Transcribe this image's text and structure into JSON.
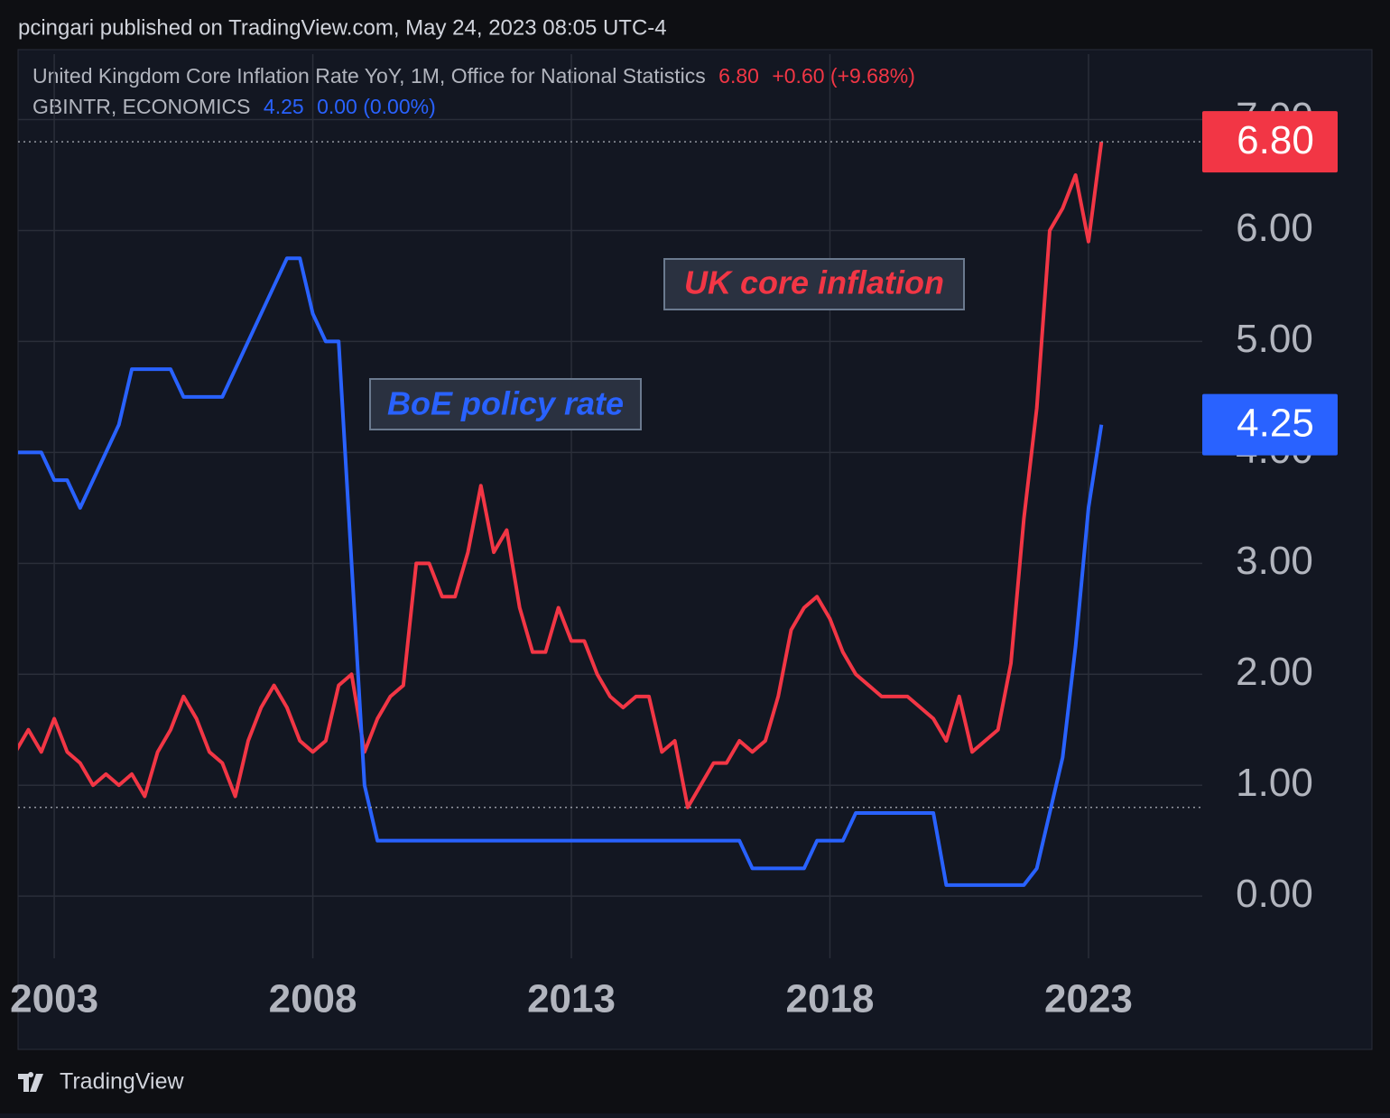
{
  "header": "pcingari published on TradingView.com, May 24, 2023 08:05 UTC-4",
  "footer": "TradingView",
  "chart_data": {
    "type": "line",
    "annotations": [
      "UK core inflation",
      "BoE policy rate"
    ],
    "x": [
      2002.25,
      2002.5,
      2002.75,
      2003,
      2003.25,
      2003.5,
      2003.75,
      2004,
      2004.25,
      2004.5,
      2004.75,
      2005,
      2005.25,
      2005.5,
      2005.75,
      2006,
      2006.25,
      2006.5,
      2006.75,
      2007,
      2007.25,
      2007.5,
      2007.75,
      2008,
      2008.25,
      2008.5,
      2008.75,
      2009,
      2009.25,
      2009.5,
      2009.75,
      2010,
      2010.25,
      2010.5,
      2010.75,
      2011,
      2011.25,
      2011.5,
      2011.75,
      2012,
      2012.25,
      2012.5,
      2012.75,
      2013,
      2013.25,
      2013.5,
      2013.75,
      2014,
      2014.25,
      2014.5,
      2014.75,
      2015,
      2015.25,
      2015.5,
      2015.75,
      2016,
      2016.25,
      2016.5,
      2016.75,
      2017,
      2017.25,
      2017.5,
      2017.75,
      2018,
      2018.25,
      2018.5,
      2018.75,
      2019,
      2019.25,
      2019.5,
      2019.75,
      2020,
      2020.25,
      2020.5,
      2020.75,
      2021,
      2021.25,
      2021.5,
      2021.75,
      2022,
      2022.25,
      2022.5,
      2022.75,
      2023,
      2023.25
    ],
    "series": [
      {
        "name": "United Kingdom Core Inflation Rate YoY, 1M, Office for National Statistics",
        "legend_value": "6.80",
        "legend_change": "+0.60 (+9.68%)",
        "color": "#f23645",
        "values": [
          1.3,
          1.5,
          1.3,
          1.6,
          1.3,
          1.2,
          1.0,
          1.1,
          1.0,
          1.1,
          0.9,
          1.3,
          1.5,
          1.8,
          1.6,
          1.3,
          1.2,
          0.9,
          1.4,
          1.7,
          1.9,
          1.7,
          1.4,
          1.3,
          1.4,
          1.9,
          2.0,
          1.3,
          1.6,
          1.8,
          1.9,
          3.0,
          3.0,
          2.7,
          2.7,
          3.1,
          3.7,
          3.1,
          3.3,
          2.6,
          2.2,
          2.2,
          2.6,
          2.3,
          2.3,
          2.0,
          1.8,
          1.7,
          1.8,
          1.8,
          1.3,
          1.4,
          0.8,
          1.0,
          1.2,
          1.2,
          1.4,
          1.3,
          1.4,
          1.8,
          2.4,
          2.6,
          2.7,
          2.5,
          2.2,
          2.0,
          1.9,
          1.8,
          1.8,
          1.8,
          1.7,
          1.6,
          1.4,
          1.8,
          1.3,
          1.4,
          1.5,
          2.1,
          3.4,
          4.4,
          6.0,
          6.2,
          6.5,
          5.9,
          6.8
        ]
      },
      {
        "name": "GBINTR, ECONOMICS",
        "legend_value": "4.25",
        "legend_change": "0.00 (0.00%)",
        "color": "#2962ff",
        "values": [
          4.0,
          4.0,
          4.0,
          3.75,
          3.75,
          3.5,
          3.75,
          4.0,
          4.25,
          4.75,
          4.75,
          4.75,
          4.75,
          4.5,
          4.5,
          4.5,
          4.5,
          4.75,
          5.0,
          5.25,
          5.5,
          5.75,
          5.75,
          5.25,
          5.0,
          5.0,
          3.0,
          1.0,
          0.5,
          0.5,
          0.5,
          0.5,
          0.5,
          0.5,
          0.5,
          0.5,
          0.5,
          0.5,
          0.5,
          0.5,
          0.5,
          0.5,
          0.5,
          0.5,
          0.5,
          0.5,
          0.5,
          0.5,
          0.5,
          0.5,
          0.5,
          0.5,
          0.5,
          0.5,
          0.5,
          0.5,
          0.5,
          0.25,
          0.25,
          0.25,
          0.25,
          0.25,
          0.5,
          0.5,
          0.5,
          0.75,
          0.75,
          0.75,
          0.75,
          0.75,
          0.75,
          0.75,
          0.1,
          0.1,
          0.1,
          0.1,
          0.1,
          0.1,
          0.1,
          0.25,
          0.75,
          1.25,
          2.25,
          3.5,
          4.25
        ]
      }
    ],
    "xlim": [
      2002.3,
      2025.2
    ],
    "xticks": [
      2003,
      2008,
      2013,
      2018,
      2023
    ],
    "ylim": [
      -0.56,
      7.59
    ],
    "yticks": [
      {
        "value": 0,
        "label": "0.00"
      },
      {
        "value": 1,
        "label": "1.00"
      },
      {
        "value": 2,
        "label": "2.00"
      },
      {
        "value": 3,
        "label": "3.00"
      },
      {
        "value": 4,
        "label": "4.00"
      },
      {
        "value": 5,
        "label": "5.00"
      },
      {
        "value": 6,
        "label": "6.00"
      },
      {
        "value": 7,
        "label": "7.00"
      }
    ],
    "grid": true
  }
}
